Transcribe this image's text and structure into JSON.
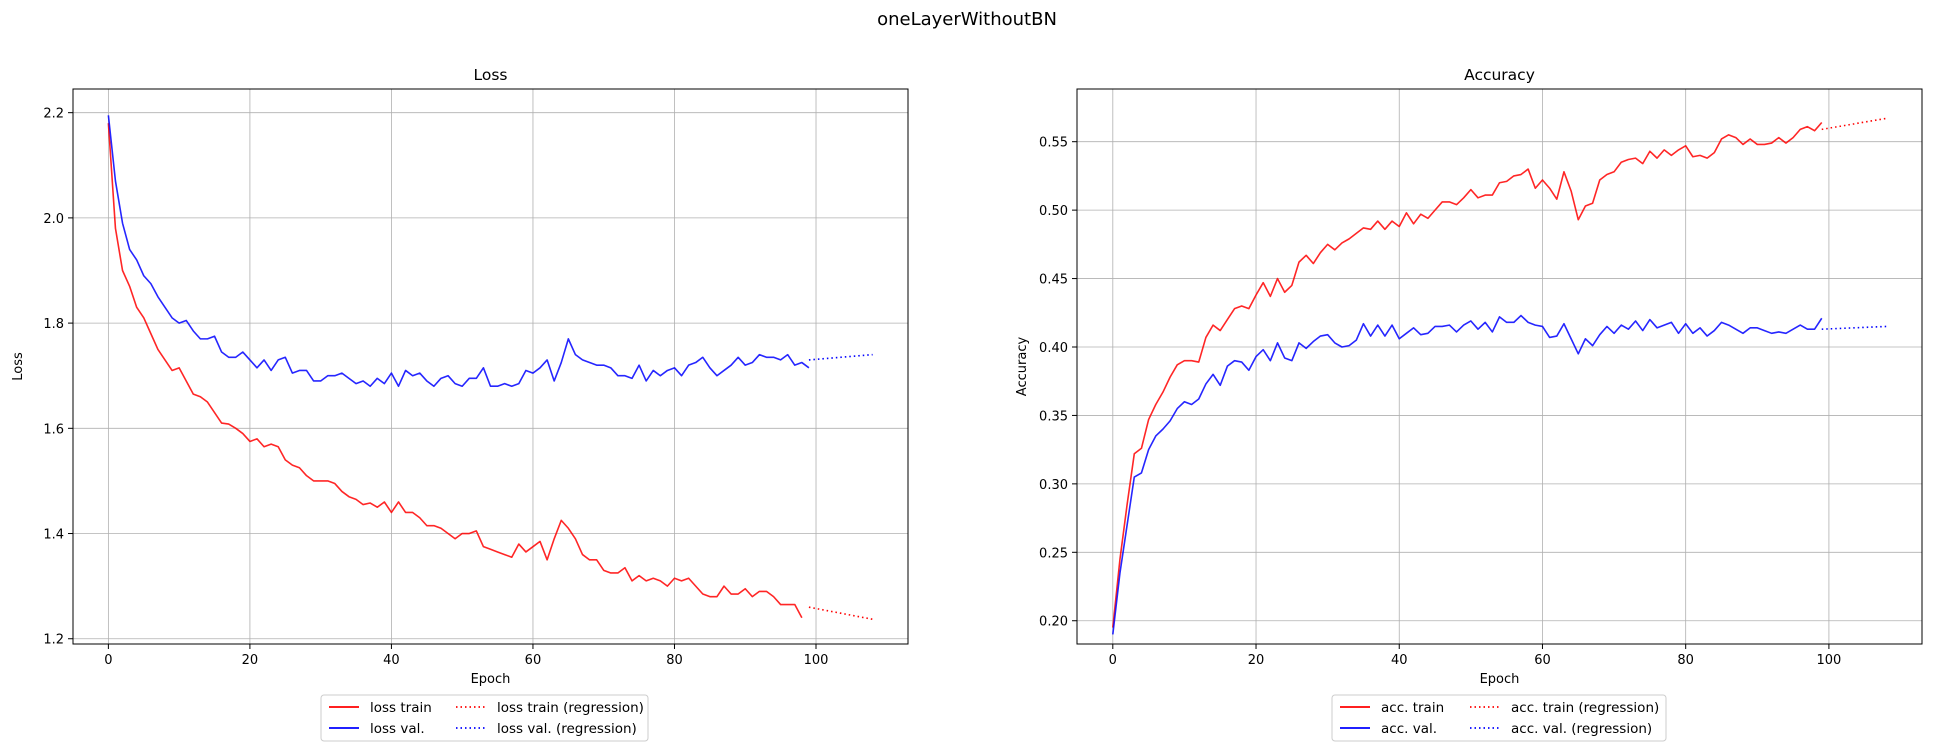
{
  "figure": {
    "suptitle": "oneLayerWithoutBN"
  },
  "chart_data": [
    {
      "type": "line",
      "title": "Loss",
      "xlabel": "Epoch",
      "ylabel": "Loss",
      "xlim": [
        -5,
        113
      ],
      "ylim": [
        1.19,
        2.245
      ],
      "xticks": [
        0,
        20,
        40,
        60,
        80,
        100
      ],
      "yticks": [
        1.2,
        1.4,
        1.6,
        1.8,
        2.0,
        2.2
      ],
      "ytick_decimals": 1,
      "grid": true,
      "legend_position": "below center, 2 columns",
      "series": [
        {
          "name": "loss train",
          "color": "#ff0000",
          "style": "solid",
          "x_start": 0,
          "values": [
            2.18,
            1.98,
            1.9,
            1.87,
            1.83,
            1.81,
            1.78,
            1.75,
            1.73,
            1.71,
            1.715,
            1.69,
            1.665,
            1.66,
            1.65,
            1.63,
            1.61,
            1.608,
            1.6,
            1.59,
            1.575,
            1.58,
            1.565,
            1.57,
            1.565,
            1.54,
            1.53,
            1.525,
            1.51,
            1.5,
            1.5,
            1.5,
            1.495,
            1.48,
            1.47,
            1.465,
            1.455,
            1.458,
            1.45,
            1.46,
            1.44,
            1.46,
            1.44,
            1.44,
            1.43,
            1.415,
            1.415,
            1.41,
            1.4,
            1.39,
            1.4,
            1.4,
            1.405,
            1.375,
            1.37,
            1.365,
            1.36,
            1.355,
            1.38,
            1.365,
            1.375,
            1.385,
            1.35,
            1.39,
            1.425,
            1.41,
            1.39,
            1.36,
            1.35,
            1.35,
            1.33,
            1.325,
            1.325,
            1.335,
            1.31,
            1.32,
            1.31,
            1.315,
            1.31,
            1.3,
            1.315,
            1.31,
            1.315,
            1.3,
            1.285,
            1.28,
            1.28,
            1.3,
            1.285,
            1.285,
            1.295,
            1.28,
            1.29,
            1.29,
            1.28,
            1.265,
            1.265,
            1.265,
            1.24
          ]
        },
        {
          "name": "loss val.",
          "color": "#0000ff",
          "style": "solid",
          "x_start": 0,
          "values": [
            2.195,
            2.07,
            1.99,
            1.94,
            1.92,
            1.89,
            1.875,
            1.85,
            1.83,
            1.81,
            1.8,
            1.805,
            1.785,
            1.77,
            1.77,
            1.775,
            1.745,
            1.735,
            1.735,
            1.745,
            1.73,
            1.715,
            1.73,
            1.71,
            1.73,
            1.735,
            1.705,
            1.71,
            1.71,
            1.69,
            1.69,
            1.7,
            1.7,
            1.705,
            1.695,
            1.685,
            1.69,
            1.68,
            1.695,
            1.685,
            1.705,
            1.68,
            1.71,
            1.7,
            1.705,
            1.69,
            1.68,
            1.695,
            1.7,
            1.685,
            1.68,
            1.695,
            1.695,
            1.715,
            1.68,
            1.68,
            1.685,
            1.68,
            1.685,
            1.71,
            1.705,
            1.715,
            1.73,
            1.69,
            1.725,
            1.77,
            1.74,
            1.73,
            1.725,
            1.72,
            1.72,
            1.715,
            1.7,
            1.7,
            1.695,
            1.72,
            1.69,
            1.71,
            1.7,
            1.71,
            1.715,
            1.7,
            1.72,
            1.725,
            1.735,
            1.715,
            1.7,
            1.71,
            1.72,
            1.735,
            1.72,
            1.725,
            1.74,
            1.735,
            1.735,
            1.73,
            1.74,
            1.72,
            1.725,
            1.715
          ]
        },
        {
          "name": "loss train (regression)",
          "color": "#ff0000",
          "style": "dotted",
          "x": [
            99,
            108
          ],
          "y": [
            1.26,
            1.237
          ]
        },
        {
          "name": "loss val. (regression)",
          "color": "#0000ff",
          "style": "dotted",
          "x": [
            99,
            108
          ],
          "y": [
            1.73,
            1.74
          ]
        }
      ]
    },
    {
      "type": "line",
      "title": "Accuracy",
      "xlabel": "Epoch",
      "ylabel": "Accuracy",
      "xlim": [
        -5,
        113
      ],
      "ylim": [
        0.183,
        0.5885
      ],
      "xticks": [
        0,
        20,
        40,
        60,
        80,
        100
      ],
      "yticks": [
        0.2,
        0.25,
        0.3,
        0.35,
        0.4,
        0.45,
        0.5,
        0.55
      ],
      "ytick_decimals": 2,
      "grid": true,
      "legend_position": "below center, 2 columns",
      "series": [
        {
          "name": "acc. train",
          "color": "#ff0000",
          "style": "solid",
          "x_start": 0,
          "values": [
            0.195,
            0.245,
            0.285,
            0.322,
            0.326,
            0.347,
            0.358,
            0.367,
            0.378,
            0.387,
            0.39,
            0.39,
            0.389,
            0.407,
            0.416,
            0.412,
            0.42,
            0.428,
            0.43,
            0.428,
            0.438,
            0.447,
            0.437,
            0.45,
            0.44,
            0.445,
            0.462,
            0.467,
            0.461,
            0.469,
            0.475,
            0.471,
            0.476,
            0.479,
            0.483,
            0.487,
            0.486,
            0.492,
            0.486,
            0.492,
            0.488,
            0.498,
            0.49,
            0.497,
            0.494,
            0.5,
            0.506,
            0.506,
            0.504,
            0.509,
            0.515,
            0.509,
            0.511,
            0.511,
            0.52,
            0.521,
            0.525,
            0.526,
            0.53,
            0.516,
            0.522,
            0.516,
            0.508,
            0.528,
            0.514,
            0.493,
            0.503,
            0.505,
            0.522,
            0.526,
            0.528,
            0.535,
            0.537,
            0.538,
            0.534,
            0.543,
            0.538,
            0.544,
            0.54,
            0.544,
            0.547,
            0.539,
            0.54,
            0.538,
            0.542,
            0.552,
            0.555,
            0.553,
            0.548,
            0.552,
            0.548,
            0.548,
            0.549,
            0.553,
            0.549,
            0.553,
            0.559,
            0.561,
            0.558,
            0.564
          ]
        },
        {
          "name": "acc. val.",
          "color": "#0000ff",
          "style": "solid",
          "x_start": 0,
          "values": [
            0.19,
            0.235,
            0.27,
            0.305,
            0.308,
            0.325,
            0.335,
            0.34,
            0.346,
            0.355,
            0.36,
            0.358,
            0.362,
            0.373,
            0.38,
            0.372,
            0.386,
            0.39,
            0.389,
            0.383,
            0.393,
            0.398,
            0.39,
            0.403,
            0.392,
            0.39,
            0.403,
            0.399,
            0.404,
            0.408,
            0.409,
            0.403,
            0.4,
            0.401,
            0.405,
            0.417,
            0.408,
            0.416,
            0.408,
            0.416,
            0.406,
            0.41,
            0.414,
            0.409,
            0.41,
            0.415,
            0.415,
            0.416,
            0.411,
            0.416,
            0.419,
            0.413,
            0.418,
            0.411,
            0.422,
            0.418,
            0.418,
            0.423,
            0.418,
            0.416,
            0.415,
            0.407,
            0.408,
            0.417,
            0.406,
            0.395,
            0.406,
            0.401,
            0.409,
            0.415,
            0.41,
            0.416,
            0.413,
            0.419,
            0.412,
            0.42,
            0.414,
            0.416,
            0.418,
            0.41,
            0.417,
            0.41,
            0.414,
            0.408,
            0.412,
            0.418,
            0.416,
            0.413,
            0.41,
            0.414,
            0.414,
            0.412,
            0.41,
            0.411,
            0.41,
            0.413,
            0.416,
            0.413,
            0.413,
            0.421
          ]
        },
        {
          "name": "acc. train (regression)",
          "color": "#ff0000",
          "style": "dotted",
          "x": [
            99,
            108
          ],
          "y": [
            0.559,
            0.567
          ]
        },
        {
          "name": "acc. val. (regression)",
          "color": "#0000ff",
          "style": "dotted",
          "x": [
            99,
            108
          ],
          "y": [
            0.413,
            0.415
          ]
        }
      ]
    }
  ]
}
